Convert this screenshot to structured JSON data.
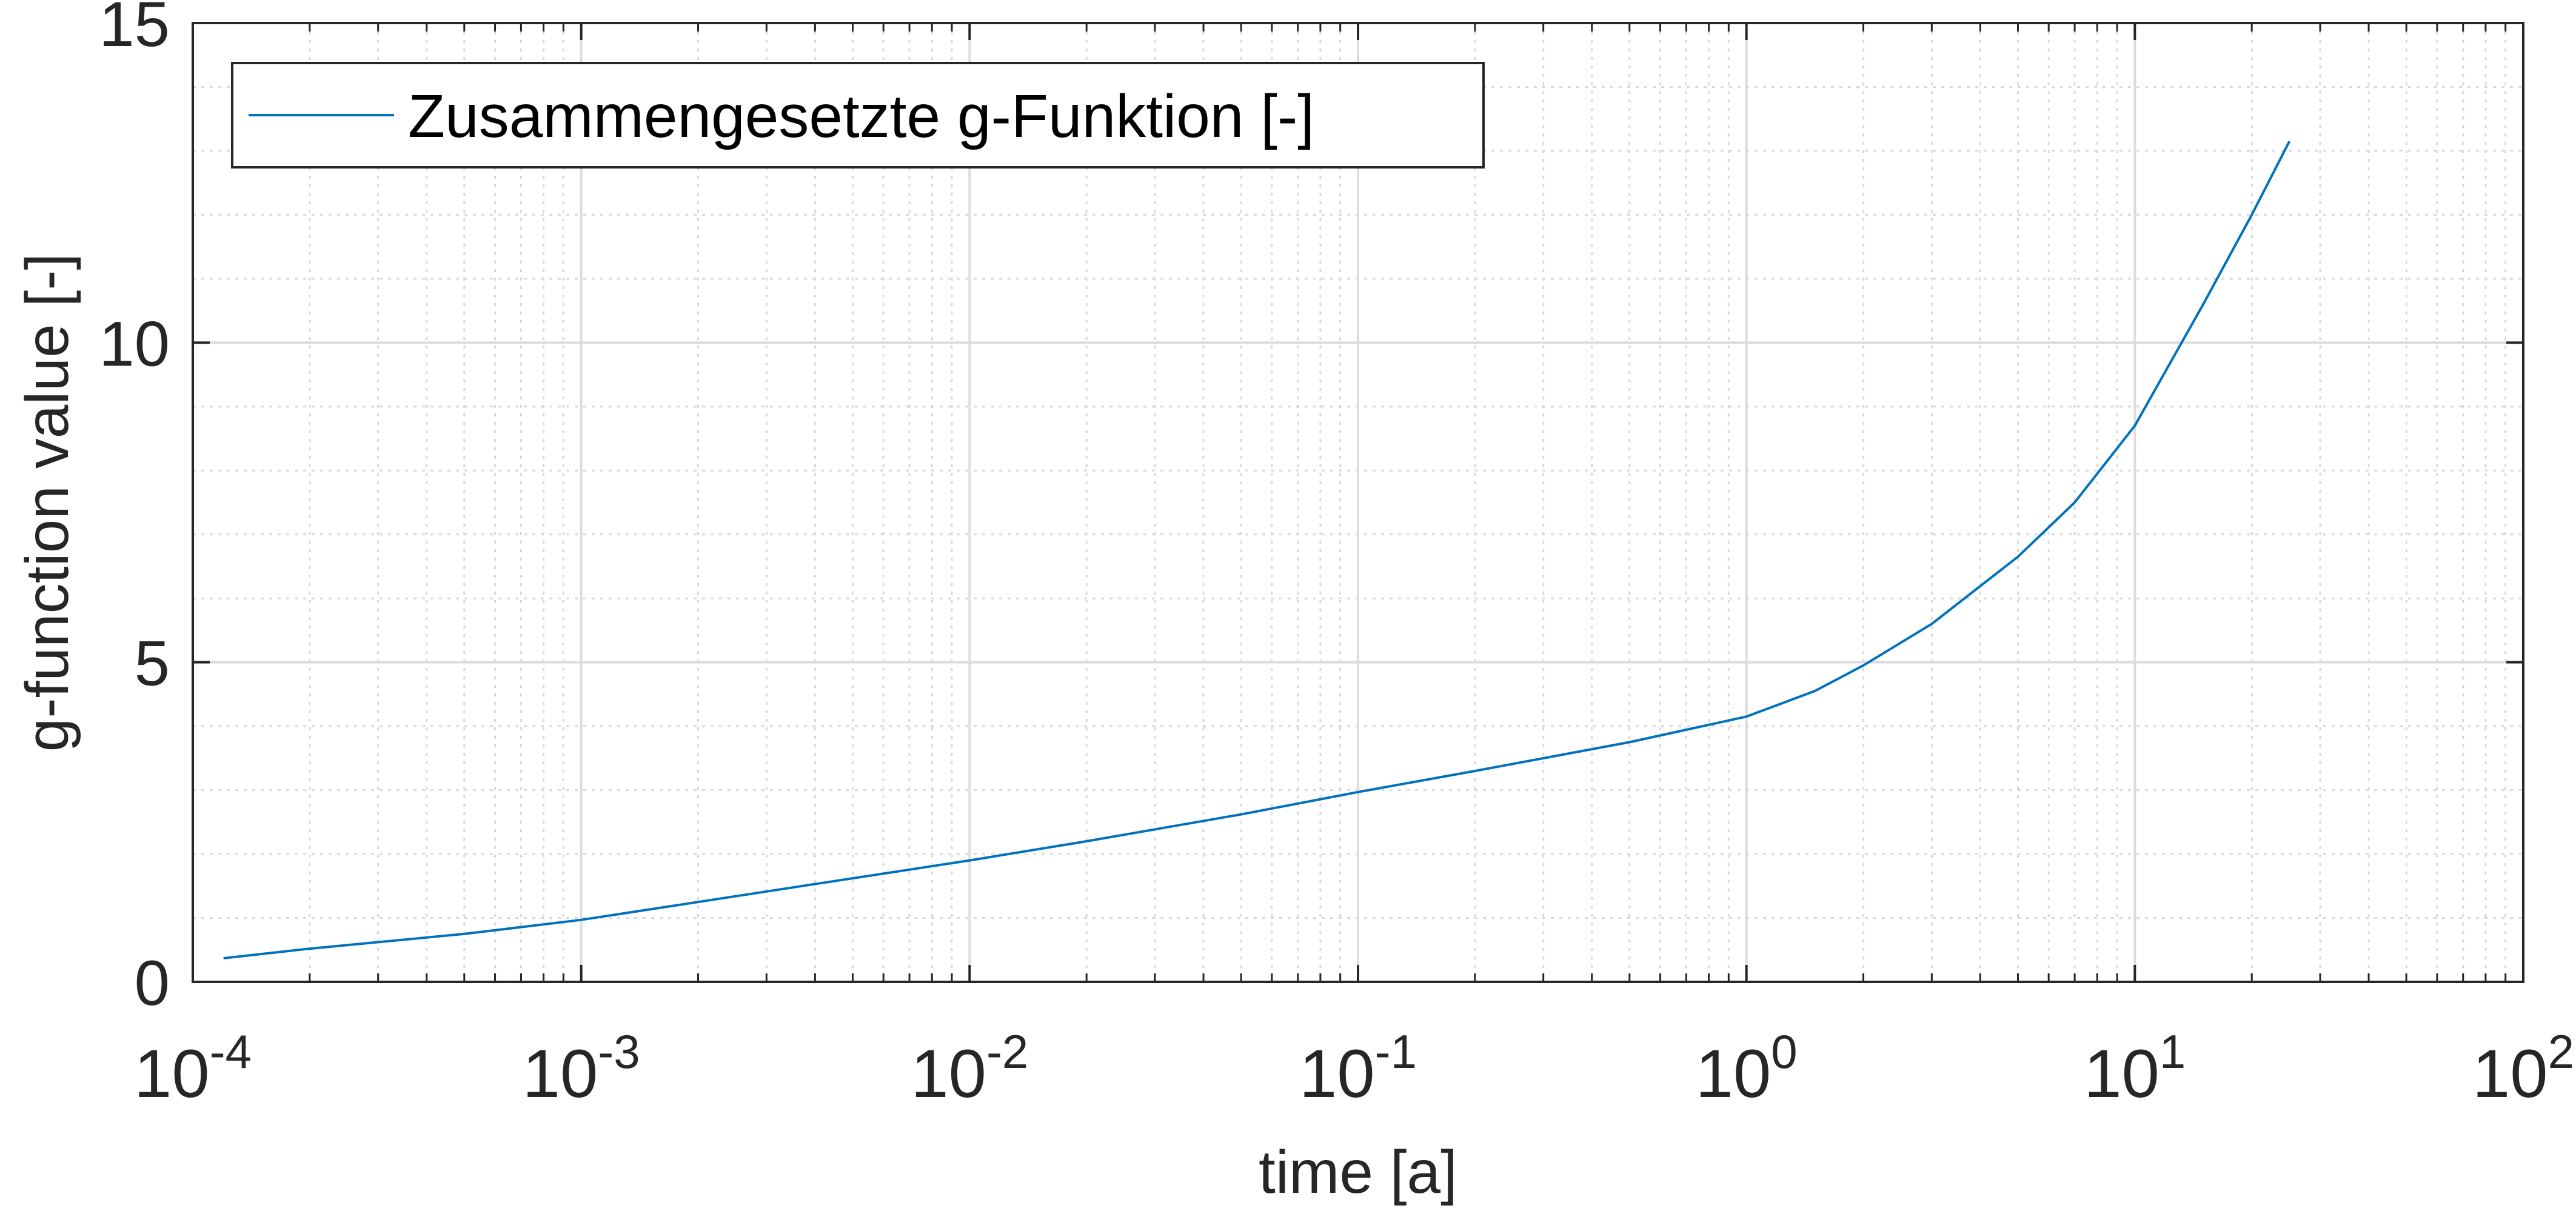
{
  "chart_data": {
    "type": "line",
    "title": "",
    "xlabel": "time [a]",
    "ylabel": "g-function value [-]",
    "x_scale": "log",
    "xlim": [
      0.0001,
      100
    ],
    "ylim": [
      0,
      15
    ],
    "grid": true,
    "minor_grid": true,
    "legend_position": "top-left",
    "x_ticks": [
      {
        "base": "10",
        "exp": "-4",
        "value": 0.0001
      },
      {
        "base": "10",
        "exp": "-3",
        "value": 0.001
      },
      {
        "base": "10",
        "exp": "-2",
        "value": 0.01
      },
      {
        "base": "10",
        "exp": "-1",
        "value": 0.1
      },
      {
        "base": "10",
        "exp": "0",
        "value": 1
      },
      {
        "base": "10",
        "exp": "1",
        "value": 10
      },
      {
        "base": "10",
        "exp": "2",
        "value": 100
      }
    ],
    "y_ticks": [
      {
        "label": "0",
        "value": 0
      },
      {
        "label": "5",
        "value": 5
      },
      {
        "label": "10",
        "value": 10
      },
      {
        "label": "15",
        "value": 15
      }
    ],
    "series": [
      {
        "name": "Zusammengesetzte g-Funktion [-]",
        "color": "#0072bd",
        "x": [
          0.00012,
          0.0002,
          0.0005,
          0.001,
          0.002,
          0.005,
          0.01,
          0.02,
          0.05,
          0.1,
          0.2,
          0.5,
          1.0,
          1.5,
          2.0,
          3.0,
          5.0,
          7.0,
          10.0,
          15.0,
          20.0,
          25.0
        ],
        "y": [
          0.37,
          0.52,
          0.75,
          0.97,
          1.25,
          1.62,
          1.9,
          2.2,
          2.62,
          2.97,
          3.3,
          3.75,
          4.15,
          4.55,
          4.95,
          5.6,
          6.65,
          7.5,
          8.7,
          10.6,
          12.0,
          13.15
        ]
      }
    ]
  }
}
